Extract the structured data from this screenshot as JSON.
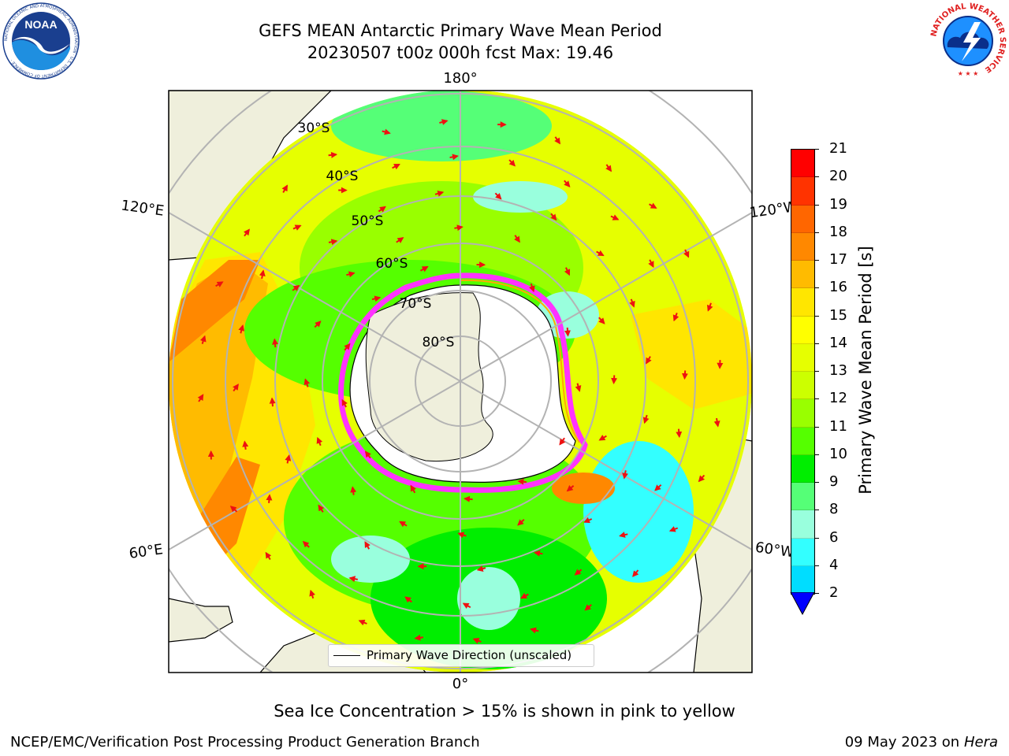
{
  "title": {
    "line1": "GEFS MEAN Antarctic Primary Wave Mean Period",
    "line2": "20230507 t00z 000h fcst   Max: 19.46"
  },
  "logos": {
    "noaa": {
      "text": "NOAA",
      "ring": "NATIONAL OCEANIC AND ATMOSPHERIC ADMINISTRATION · U.S. DEPARTMENT OF COMMERCE ·"
    },
    "nws": {
      "ring": "NATIONAL WEATHER SERVICE"
    }
  },
  "map": {
    "projection": "south-polar-stereographic",
    "longitude_labels": {
      "top": "180°",
      "upper_left": "120°E",
      "upper_right": "120°W",
      "lower_left": "60°E",
      "lower_right": "60°W",
      "bottom": "0°"
    },
    "latitude_labels": [
      "30°S",
      "40°S",
      "50°S",
      "60°S",
      "70°S",
      "80°S"
    ],
    "sea_ice_colors": [
      "#ff33ff",
      "#ff66cc",
      "#ffaa00",
      "#ffff00"
    ]
  },
  "legend": {
    "label": "Primary Wave Direction (unscaled)"
  },
  "colorbar": {
    "label": "Primary Wave Mean Period [s]",
    "ticks": [
      "21",
      "20",
      "19",
      "18",
      "17",
      "16",
      "15",
      "14",
      "13",
      "12",
      "11",
      "10",
      "9",
      "8",
      "6",
      "4",
      "2"
    ],
    "colors": [
      "#ff0000",
      "#ff3300",
      "#ff6600",
      "#ff8800",
      "#ffbb00",
      "#ffe600",
      "#ffff00",
      "#e6ff00",
      "#ccff00",
      "#99ff00",
      "#55ff00",
      "#00ee00",
      "#55ff77",
      "#99ffdd",
      "#33ffff",
      "#00ddff",
      "#0077ff",
      "#0000ff"
    ]
  },
  "annotation": "Sea Ice Concentration > 15% is shown in pink to yellow",
  "footer": {
    "left": "NCEP/EMC/Verification Post Processing Product Generation Branch",
    "right_date": "09 May 2023 on",
    "right_machine": "Hera"
  }
}
